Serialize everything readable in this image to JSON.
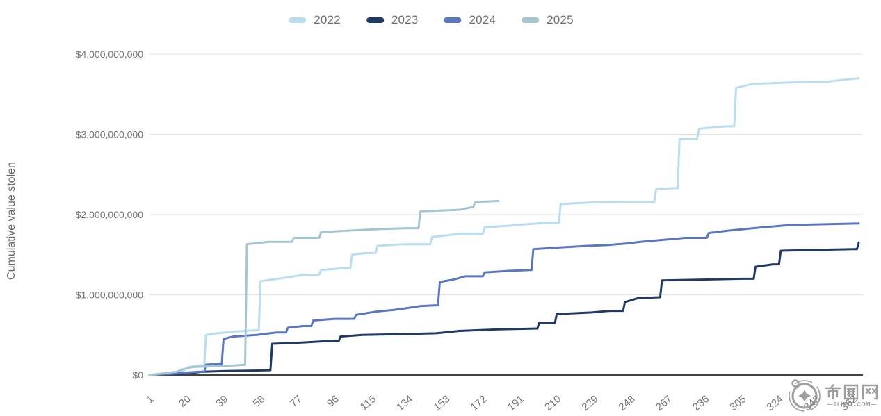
{
  "chart_data": {
    "type": "line",
    "title": "",
    "legend_position": "top-center",
    "grid": "horizontal",
    "y_axis": {
      "title": "Cumulative value stolen",
      "range_billions": [
        0,
        4
      ],
      "ticks": [
        {
          "value": 0,
          "label": "$0"
        },
        {
          "value": 1,
          "label": "$1,000,000,000"
        },
        {
          "value": 2,
          "label": "$2,000,000,000"
        },
        {
          "value": 3,
          "label": "$3,000,000,000"
        },
        {
          "value": 4,
          "label": "$4,000,000,000"
        }
      ]
    },
    "x_axis": {
      "range": [
        1,
        365
      ],
      "ticks": [
        {
          "day": 1,
          "label": "1"
        },
        {
          "day": 20,
          "label": "20"
        },
        {
          "day": 39,
          "label": "39"
        },
        {
          "day": 58,
          "label": "58"
        },
        {
          "day": 77,
          "label": "77"
        },
        {
          "day": 96,
          "label": "96"
        },
        {
          "day": 115,
          "label": "115"
        },
        {
          "day": 134,
          "label": "134"
        },
        {
          "day": 153,
          "label": "153"
        },
        {
          "day": 172,
          "label": "172"
        },
        {
          "day": 191,
          "label": "191"
        },
        {
          "day": 210,
          "label": "210"
        },
        {
          "day": 229,
          "label": "229"
        },
        {
          "day": 248,
          "label": "248"
        },
        {
          "day": 267,
          "label": "267"
        },
        {
          "day": 286,
          "label": "286"
        },
        {
          "day": 305,
          "label": "305"
        },
        {
          "day": 324,
          "label": "324"
        },
        {
          "day": 343,
          "label": "343"
        },
        {
          "day": 362,
          "label": "362"
        }
      ]
    },
    "value_unit": "USD billions",
    "series": [
      {
        "name": "2022",
        "color": "#b9ddf1",
        "points": [
          [
            1,
            0
          ],
          [
            6,
            0.01
          ],
          [
            12,
            0.03
          ],
          [
            18,
            0.05
          ],
          [
            21,
            0.1
          ],
          [
            27,
            0.12
          ],
          [
            30,
            0.5
          ],
          [
            36,
            0.52
          ],
          [
            44,
            0.54
          ],
          [
            57,
            0.56
          ],
          [
            58,
            1.17
          ],
          [
            70,
            1.21
          ],
          [
            80,
            1.25
          ],
          [
            89,
            1.31
          ],
          [
            100,
            1.33
          ],
          [
            105,
            1.5
          ],
          [
            112,
            1.52
          ],
          [
            118,
            1.61
          ],
          [
            131,
            1.63
          ],
          [
            146,
            1.72
          ],
          [
            160,
            1.76
          ],
          [
            173,
            1.84
          ],
          [
            190,
            1.87
          ],
          [
            205,
            1.9
          ],
          [
            212,
            2.13
          ],
          [
            226,
            2.15
          ],
          [
            245,
            2.16
          ],
          [
            261,
            2.32
          ],
          [
            271,
            2.33
          ],
          [
            273,
            2.94
          ],
          [
            283,
            3.07
          ],
          [
            297,
            3.1
          ],
          [
            302,
            3.58
          ],
          [
            311,
            3.63
          ],
          [
            334,
            3.65
          ],
          [
            350,
            3.66
          ],
          [
            357,
            3.68
          ],
          [
            365,
            3.7
          ]
        ]
      },
      {
        "name": "2023",
        "color": "#203a66",
        "points": [
          [
            1,
            0
          ],
          [
            10,
            0.01
          ],
          [
            20,
            0.02
          ],
          [
            28,
            0.04
          ],
          [
            40,
            0.05
          ],
          [
            55,
            0.055
          ],
          [
            63,
            0.06
          ],
          [
            64,
            0.39
          ],
          [
            76,
            0.4
          ],
          [
            90,
            0.42
          ],
          [
            99,
            0.48
          ],
          [
            110,
            0.5
          ],
          [
            130,
            0.51
          ],
          [
            148,
            0.52
          ],
          [
            160,
            0.55
          ],
          [
            180,
            0.57
          ],
          [
            200,
            0.58
          ],
          [
            201,
            0.65
          ],
          [
            210,
            0.76
          ],
          [
            228,
            0.78
          ],
          [
            237,
            0.8
          ],
          [
            245,
            0.91
          ],
          [
            252,
            0.96
          ],
          [
            263,
            0.97
          ],
          [
            264,
            1.18
          ],
          [
            285,
            1.19
          ],
          [
            305,
            1.2
          ],
          [
            312,
            1.35
          ],
          [
            321,
            1.38
          ],
          [
            325,
            1.55
          ],
          [
            345,
            1.56
          ],
          [
            362,
            1.57
          ],
          [
            365,
            1.65
          ]
        ]
      },
      {
        "name": "2024",
        "color": "#5a78c2",
        "points": [
          [
            1,
            0
          ],
          [
            10,
            0.01
          ],
          [
            20,
            0.03
          ],
          [
            26,
            0.04
          ],
          [
            30,
            0.13
          ],
          [
            36,
            0.14
          ],
          [
            39,
            0.45
          ],
          [
            44,
            0.48
          ],
          [
            56,
            0.5
          ],
          [
            66,
            0.53
          ],
          [
            72,
            0.59
          ],
          [
            80,
            0.61
          ],
          [
            85,
            0.68
          ],
          [
            96,
            0.7
          ],
          [
            107,
            0.75
          ],
          [
            117,
            0.79
          ],
          [
            126,
            0.81
          ],
          [
            132,
            0.83
          ],
          [
            140,
            0.86
          ],
          [
            149,
            0.87
          ],
          [
            150,
            1.16
          ],
          [
            157,
            1.19
          ],
          [
            163,
            1.23
          ],
          [
            173,
            1.28
          ],
          [
            186,
            1.3
          ],
          [
            197,
            1.31
          ],
          [
            198,
            1.57
          ],
          [
            211,
            1.59
          ],
          [
            226,
            1.61
          ],
          [
            236,
            1.62
          ],
          [
            246,
            1.64
          ],
          [
            253,
            1.66
          ],
          [
            262,
            1.68
          ],
          [
            276,
            1.71
          ],
          [
            288,
            1.77
          ],
          [
            298,
            1.8
          ],
          [
            315,
            1.84
          ],
          [
            330,
            1.87
          ],
          [
            348,
            1.88
          ],
          [
            365,
            1.89
          ]
        ]
      },
      {
        "name": "2025",
        "color": "#a3c6d2",
        "points": [
          [
            1,
            0
          ],
          [
            8,
            0.02
          ],
          [
            15,
            0.04
          ],
          [
            18,
            0.07
          ],
          [
            23,
            0.1
          ],
          [
            34,
            0.11
          ],
          [
            45,
            0.12
          ],
          [
            50,
            0.13
          ],
          [
            51,
            1.63
          ],
          [
            62,
            1.66
          ],
          [
            75,
            1.71
          ],
          [
            89,
            1.78
          ],
          [
            103,
            1.8
          ],
          [
            120,
            1.82
          ],
          [
            133,
            1.83
          ],
          [
            140,
            2.04
          ],
          [
            150,
            2.05
          ],
          [
            160,
            2.06
          ],
          [
            166,
            2.09
          ],
          [
            168,
            2.15
          ],
          [
            172,
            2.16
          ],
          [
            180,
            2.17
          ]
        ]
      }
    ]
  },
  "watermark": {
    "site_name": "币圈网",
    "domain": "ALIBTC.COM",
    "domain_decorated": "—ALIBTC.COM—"
  },
  "colors": {
    "axis_line": "#424242",
    "gridline": "#e3e3e3",
    "tick_label": "#757575",
    "axis_title": "#666666",
    "legend_text": "#6f6f6f",
    "watermark": "#8f8f8f"
  }
}
